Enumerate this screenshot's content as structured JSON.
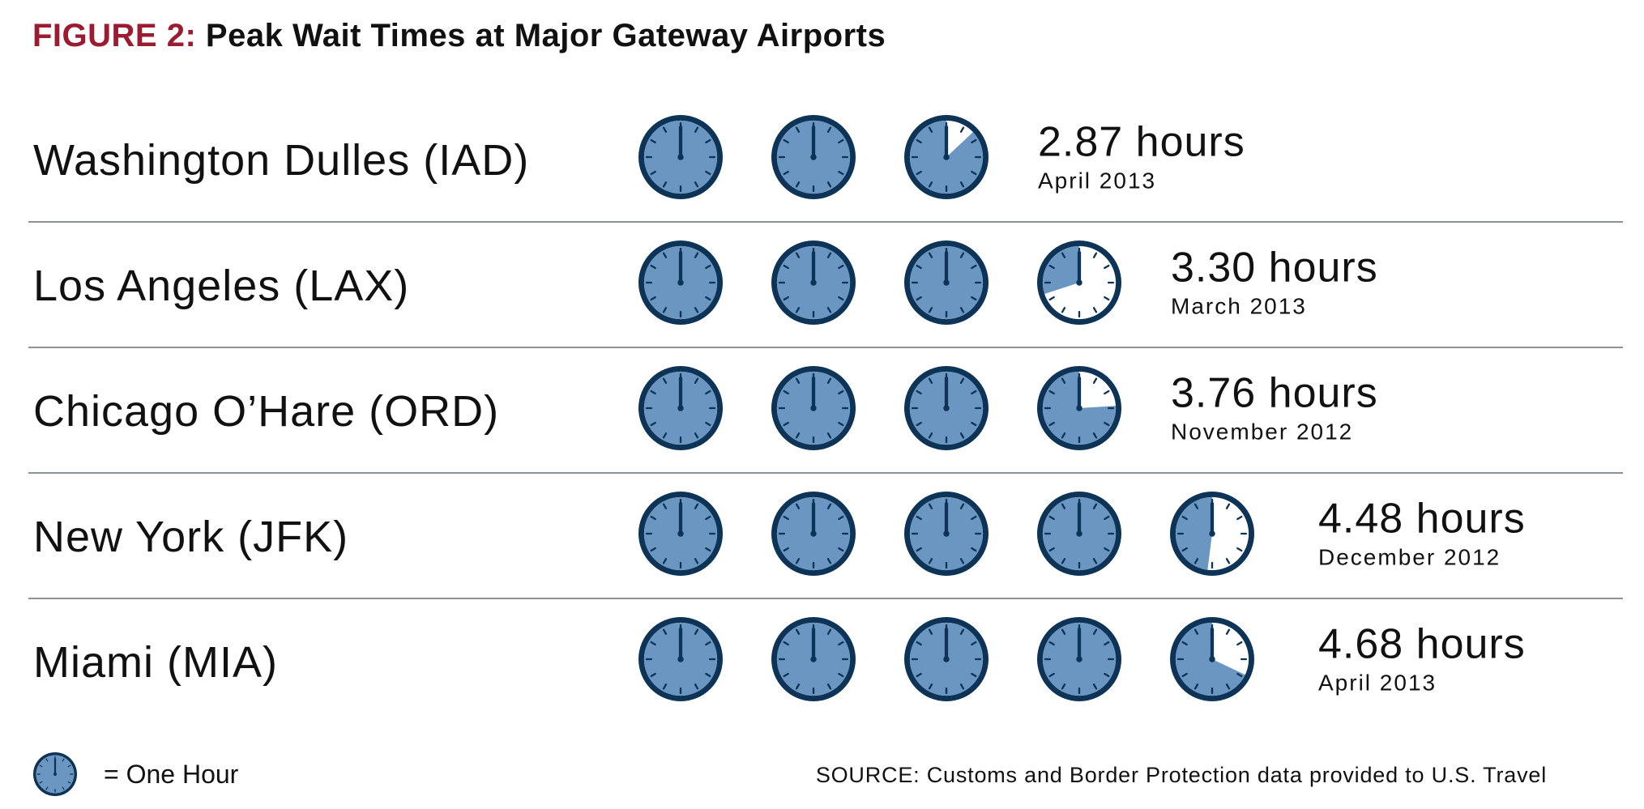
{
  "title": {
    "figure_label": "FIGURE 2:",
    "text": "Peak Wait Times at Major Gateway Airports"
  },
  "colors": {
    "accent": "#9b1b30",
    "clock_rim": "#0d3356",
    "clock_face": "#6a96c1",
    "clock_empty": "#ffffff",
    "separator": "#8a9296"
  },
  "chart_data": {
    "type": "pictograph",
    "unit": "hours",
    "rows": [
      {
        "airport": "Washington Dulles (IAD)",
        "value": 2.87,
        "value_label": "2.87 hours",
        "date": "April 2013"
      },
      {
        "airport": "Los Angeles (LAX)",
        "value": 3.3,
        "value_label": "3.30 hours",
        "date": "March 2013"
      },
      {
        "airport": "Chicago O’Hare (ORD)",
        "value": 3.76,
        "value_label": "3.76 hours",
        "date": "November 2012"
      },
      {
        "airport": "New York (JFK)",
        "value": 4.48,
        "value_label": "4.48 hours",
        "date": "December 2012"
      },
      {
        "airport": "Miami (MIA)",
        "value": 4.68,
        "value_label": "4.68 hours",
        "date": "April 2013"
      }
    ],
    "legend": {
      "label": "=  One Hour",
      "value": 1
    }
  },
  "source": "SOURCE: Customs and Border Protection data provided to U.S. Travel"
}
